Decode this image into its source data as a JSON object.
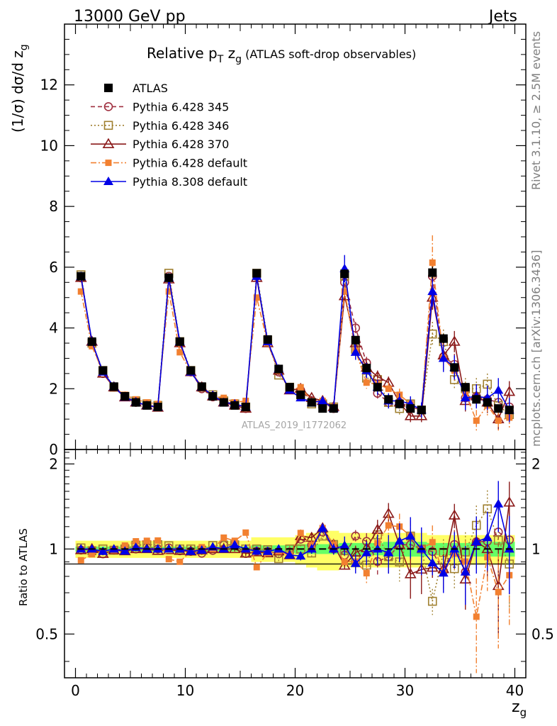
{
  "header": {
    "energy_label": "13000 GeV pp",
    "category_label": "Jets"
  },
  "side_labels": {
    "rivet": "Rivet 3.1.10, ≥ 2.5M events",
    "mcplots": "mcplots.cern.ch [arXiv:1306.3436]"
  },
  "chart_data": [
    {
      "type": "scatter",
      "panel": "main",
      "title": "Relative pT zg (ATLAS soft-drop observables)",
      "title_parts": {
        "pre": "Relative p",
        "sub1": "T",
        "mid": " z",
        "sub2": "g",
        "post": " (ATLAS soft-drop observables)"
      },
      "ylabel": "(1/σ) dσ/d z",
      "ylabel_sub": "g",
      "analysis_label": "ATLAS_2019_I1772062",
      "xlim": [
        -1,
        41
      ],
      "ylim": [
        0,
        14
      ],
      "x_ticks": [
        0,
        10,
        20,
        30,
        40
      ],
      "y_ticks": [
        0,
        2,
        4,
        6,
        8,
        10,
        12
      ],
      "legend_position": "top-left",
      "x": [
        0.5,
        1.5,
        2.5,
        3.5,
        4.5,
        5.5,
        6.5,
        7.5,
        8.5,
        9.5,
        10.5,
        11.5,
        12.5,
        13.5,
        14.5,
        15.5,
        16.5,
        17.5,
        18.5,
        19.5,
        20.5,
        21.5,
        22.5,
        23.5,
        24.5,
        25.5,
        26.5,
        27.5,
        28.5,
        29.5,
        30.5,
        31.5,
        32.5,
        33.5,
        34.5,
        35.5,
        36.5,
        37.5,
        38.5,
        39.5
      ],
      "series": [
        {
          "name": "ATLAS",
          "color": "#000000",
          "marker": "filled-square",
          "line": "none",
          "values": [
            5.7,
            3.55,
            2.6,
            2.07,
            1.75,
            1.55,
            1.45,
            1.4,
            5.65,
            3.55,
            2.6,
            2.07,
            1.75,
            1.55,
            1.45,
            1.4,
            5.8,
            3.62,
            2.65,
            2.05,
            1.8,
            1.55,
            1.35,
            1.35,
            5.78,
            3.6,
            2.68,
            2.05,
            1.65,
            1.5,
            1.35,
            1.3,
            5.82,
            3.65,
            2.7,
            2.05,
            1.65,
            1.55,
            1.35,
            1.3
          ],
          "errors": [
            0.08,
            0.06,
            0.05,
            0.04,
            0.03,
            0.03,
            0.03,
            0.03,
            0.08,
            0.06,
            0.05,
            0.04,
            0.03,
            0.03,
            0.03,
            0.03,
            0.1,
            0.08,
            0.06,
            0.05,
            0.05,
            0.05,
            0.05,
            0.05,
            0.15,
            0.12,
            0.1,
            0.08,
            0.08,
            0.08,
            0.08,
            0.08,
            0.2,
            0.15,
            0.12,
            0.1,
            0.1,
            0.1,
            0.1,
            0.1
          ]
        },
        {
          "name": "Pythia 6.428 345",
          "color": "#a03040",
          "marker": "open-circle",
          "line": "dashed",
          "values": [
            5.65,
            3.5,
            2.5,
            2.05,
            1.75,
            1.55,
            1.47,
            1.4,
            5.7,
            3.5,
            2.55,
            2.0,
            1.73,
            1.6,
            1.5,
            1.35,
            5.7,
            3.55,
            2.55,
            2.0,
            1.95,
            1.6,
            1.55,
            1.35,
            5.5,
            4.0,
            2.85,
            1.85,
            1.55,
            1.55,
            1.4,
            1.3,
            5.7,
            3.05,
            2.8,
            1.7,
            1.75,
            1.65,
            1.55,
            1.4
          ],
          "errors": [
            0.04,
            0.04,
            0.03,
            0.03,
            0.03,
            0.03,
            0.03,
            0.03,
            0.04,
            0.04,
            0.03,
            0.03,
            0.03,
            0.03,
            0.03,
            0.03,
            0.06,
            0.06,
            0.05,
            0.05,
            0.06,
            0.06,
            0.06,
            0.06,
            0.15,
            0.2,
            0.2,
            0.2,
            0.2,
            0.2,
            0.2,
            0.2,
            0.4,
            0.4,
            0.35,
            0.35,
            0.35,
            0.35,
            0.35,
            0.35
          ]
        },
        {
          "name": "Pythia 6.428 346",
          "color": "#a08030",
          "marker": "open-square",
          "line": "dotted",
          "values": [
            5.75,
            3.5,
            2.6,
            2.05,
            1.75,
            1.6,
            1.5,
            1.45,
            5.8,
            3.55,
            2.6,
            2.05,
            1.8,
            1.6,
            1.5,
            1.4,
            5.8,
            3.6,
            2.45,
            2.05,
            1.8,
            1.5,
            1.5,
            1.4,
            5.7,
            3.3,
            2.35,
            2.3,
            1.55,
            1.35,
            1.5,
            1.3,
            3.8,
            3.55,
            2.3,
            2.0,
            2.0,
            2.15,
            1.45,
            1.15
          ],
          "errors": [
            0.04,
            0.04,
            0.03,
            0.03,
            0.03,
            0.03,
            0.03,
            0.03,
            0.04,
            0.04,
            0.03,
            0.03,
            0.03,
            0.03,
            0.03,
            0.03,
            0.06,
            0.06,
            0.05,
            0.05,
            0.06,
            0.06,
            0.06,
            0.06,
            0.15,
            0.2,
            0.2,
            0.2,
            0.2,
            0.2,
            0.2,
            0.2,
            0.4,
            0.4,
            0.35,
            0.35,
            0.35,
            0.35,
            0.35,
            0.35
          ]
        },
        {
          "name": "Pythia 6.428 370",
          "color": "#8b1a1a",
          "marker": "open-triangle",
          "line": "solid",
          "values": [
            5.65,
            3.55,
            2.5,
            2.05,
            1.72,
            1.55,
            1.45,
            1.38,
            5.6,
            3.5,
            2.55,
            2.05,
            1.75,
            1.55,
            1.45,
            1.35,
            5.65,
            3.5,
            2.6,
            1.95,
            2.0,
            1.7,
            1.6,
            1.4,
            5.05,
            3.5,
            2.7,
            2.4,
            2.2,
            1.55,
            1.1,
            1.1,
            5.0,
            3.1,
            3.55,
            1.6,
            1.75,
            1.55,
            1.0,
            1.9
          ],
          "errors": [
            0.04,
            0.04,
            0.03,
            0.03,
            0.03,
            0.03,
            0.03,
            0.03,
            0.04,
            0.04,
            0.03,
            0.03,
            0.03,
            0.03,
            0.03,
            0.03,
            0.06,
            0.06,
            0.05,
            0.05,
            0.06,
            0.06,
            0.06,
            0.06,
            0.15,
            0.2,
            0.2,
            0.2,
            0.2,
            0.2,
            0.2,
            0.2,
            0.4,
            0.4,
            0.35,
            0.35,
            0.35,
            0.35,
            0.35,
            0.35
          ]
        },
        {
          "name": "Pythia 6.428 default",
          "color": "#f28030",
          "marker": "filled-square-small",
          "line": "dashdot",
          "values": [
            5.2,
            3.4,
            2.55,
            2.05,
            1.8,
            1.65,
            1.55,
            1.5,
            5.2,
            3.2,
            2.55,
            2.1,
            1.75,
            1.7,
            1.55,
            1.6,
            5.0,
            3.5,
            2.6,
            1.95,
            2.05,
            1.6,
            1.6,
            1.4,
            5.2,
            3.25,
            2.2,
            2.15,
            2.0,
            1.8,
            1.5,
            1.3,
            6.15,
            3.0,
            2.6,
            1.85,
            0.95,
            1.45,
            0.95,
            1.05
          ],
          "errors": [
            0.04,
            0.04,
            0.03,
            0.03,
            0.03,
            0.03,
            0.03,
            0.03,
            0.04,
            0.04,
            0.03,
            0.03,
            0.03,
            0.03,
            0.03,
            0.03,
            0.06,
            0.06,
            0.05,
            0.05,
            0.06,
            0.06,
            0.06,
            0.06,
            0.15,
            0.2,
            0.2,
            0.2,
            0.2,
            0.2,
            0.2,
            0.2,
            0.9,
            0.4,
            0.35,
            0.35,
            0.35,
            0.35,
            0.35,
            0.35
          ]
        },
        {
          "name": "Pythia 8.308 default",
          "color": "#0000e6",
          "marker": "filled-triangle",
          "line": "solid",
          "values": [
            5.7,
            3.55,
            2.55,
            2.07,
            1.72,
            1.57,
            1.45,
            1.4,
            5.65,
            3.55,
            2.55,
            2.05,
            1.78,
            1.55,
            1.5,
            1.4,
            5.7,
            3.55,
            2.65,
            1.95,
            1.7,
            1.55,
            1.6,
            1.35,
            5.95,
            3.2,
            2.6,
            2.05,
            1.6,
            1.6,
            1.5,
            1.3,
            5.2,
            3.0,
            2.7,
            1.7,
            1.75,
            1.7,
            1.95,
            1.3
          ],
          "errors": [
            0.04,
            0.04,
            0.03,
            0.03,
            0.03,
            0.03,
            0.03,
            0.03,
            0.04,
            0.04,
            0.03,
            0.03,
            0.03,
            0.03,
            0.03,
            0.03,
            0.06,
            0.06,
            0.05,
            0.05,
            0.06,
            0.06,
            0.06,
            0.06,
            0.45,
            0.25,
            0.25,
            0.25,
            0.25,
            0.25,
            0.25,
            0.25,
            0.5,
            0.45,
            0.4,
            0.4,
            0.4,
            0.4,
            0.4,
            0.4
          ]
        }
      ]
    },
    {
      "type": "scatter",
      "panel": "ratio",
      "ylabel": "Ratio to ATLAS",
      "xlabel": "z",
      "xlabel_sub": "g",
      "xlim": [
        -1,
        41
      ],
      "ylim": [
        0.35,
        2.25
      ],
      "y_ticks": [
        0.5,
        1,
        2
      ],
      "y_tick_labels": [
        "0.5",
        "1",
        "2"
      ],
      "band_green_halfwidth": [
        0.02,
        0.02,
        0.02,
        0.02,
        0.02,
        0.02,
        0.02,
        0.02,
        0.02,
        0.02,
        0.02,
        0.02,
        0.02,
        0.02,
        0.02,
        0.02,
        0.03,
        0.03,
        0.03,
        0.03,
        0.04,
        0.04,
        0.04,
        0.04,
        0.05,
        0.05,
        0.05,
        0.05,
        0.06,
        0.06,
        0.06,
        0.06,
        0.05,
        0.05,
        0.05,
        0.05,
        0.06,
        0.06,
        0.06,
        0.06
      ],
      "band_yellow_halfwidth": [
        0.07,
        0.07,
        0.07,
        0.07,
        0.07,
        0.07,
        0.07,
        0.07,
        0.07,
        0.07,
        0.07,
        0.07,
        0.07,
        0.07,
        0.07,
        0.07,
        0.1,
        0.1,
        0.1,
        0.1,
        0.12,
        0.14,
        0.16,
        0.16,
        0.14,
        0.14,
        0.14,
        0.14,
        0.14,
        0.14,
        0.14,
        0.14,
        0.12,
        0.12,
        0.12,
        0.12,
        0.12,
        0.12,
        0.12,
        0.12
      ]
    }
  ]
}
